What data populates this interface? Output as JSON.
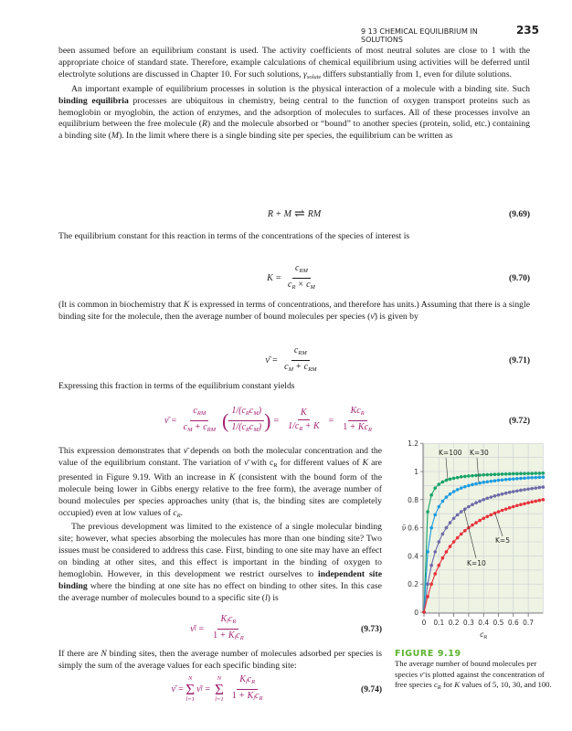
{
  "header": {
    "section": "9 13  CHEMICAL EQUILIBRIUM IN SOLUTIONS",
    "page": "235"
  },
  "para1": [
    "been assumed before an equilibrium constant is used. The activity coefficients of most neutral solutes are close to 1 with the appropriate choice of standard state. Therefore, example calculations of chemical equilibrium using activities will be deferred until electrolyte solutions are discussed in Chapter 10. For such solutions, ",
    "γ",
    "solute",
    " differs substantially from 1, even for dilute solutions."
  ],
  "para2": [
    "An important example of equilibrium processes in solution is the physical interaction of a molecule with a binding site. Such ",
    "binding equilibria",
    " processes are ubiquitous in chemistry, being central to the function of oxygen transport proteins such as hemoglobin or myoglobin, the action of enzymes, and the adsorption of molecules to surfaces. All of these processes involve an equilibrium between the free molecule (",
    "R",
    ") and the molecule absorbed or “bound” to another species (protein, solid, etc.) containing a binding site (",
    "M",
    "). In the limit where there is a single binding site per species, the equilibrium can be written as"
  ],
  "eq69": {
    "lhs": "R + M",
    "arrow": "⇌",
    "rhs": "RM",
    "num": "(9.69)"
  },
  "para3": "The equilibrium constant for this reaction in terms of the concentrations of the species of interest is",
  "eq70": {
    "lhs": "K =",
    "c": "c",
    "sub_rm": "RM",
    "sub_r": "R",
    "sub_m": "M",
    "times": "×",
    "num": "(9.70)"
  },
  "para4": [
    "(It is common in biochemistry that ",
    "K",
    " is expressed in terms of concentrations, and therefore has units.) Assuming that there is a single binding site for the molecule, then the average number of bound molecules per species (",
    "ν̄",
    ") is given by"
  ],
  "eq71": {
    "lhs": "ν̄ =",
    "plus": "+",
    "num": "(9.71)"
  },
  "para5": "Expressing this fraction in terms of the equilibrium constant yields",
  "eq72": {
    "lhs": "ν̄ =",
    "one_over": "1/(",
    "close": ")",
    "eq": "=",
    "K": "K",
    "one_slash": "1/",
    "one": "1",
    "num": "(9.72)"
  },
  "para6": [
    "This expression demonstrates that ",
    "ν̄",
    " depends on both the molecular concentration and the value of the equilibrium constant. The variation of ",
    "ν̄",
    " with c",
    "R",
    " for different values of ",
    "K",
    " are presented in Figure 9.19. With an increase in ",
    "K",
    " (consistent with the bound form of the molecule being lower in Gibbs energy relative to the free form), the average number of bound molecules per species approaches unity (that is, the binding sites are completely occupied) even at low values of ",
    "c",
    "R",
    "."
  ],
  "para7": [
    "The previous development was limited to the existence of a single molecular binding site; however, what species absorbing the molecules has more than one binding site? Two issues must be considered to address this case. First, binding to one site may have an effect on binding at other sites, and this effect is important in the binding of oxygen to hemoglobin. However, in this development we restrict ourselves to ",
    "independent site binding",
    " where the binding at one site has no effect on binding to other sites. In this case the average number of molecules bound to a specific site (",
    "l",
    ") is"
  ],
  "eq73": {
    "lhs": "ν̄",
    "sub_l": "l",
    "eqs": "=",
    "K": "K",
    "num": "(9.73)"
  },
  "para8": [
    "If there are ",
    "N",
    " binding sites, then the average number of molecules adsorbed per species is simply the sum of the average values for each specific binding site:"
  ],
  "eq74": {
    "sigma": "Σ",
    "N": "N",
    "l1": "l=1",
    "num": "(9.74)"
  },
  "figure": {
    "title": "FIGURE 9.19",
    "caption": [
      "The average number of bound molecules per species ",
      "ν̄",
      " is plotted against the concentration of free species ",
      "c",
      "R",
      " for ",
      "K",
      " values of 5, 10, 30, and 100."
    ]
  },
  "chart_data": {
    "type": "line",
    "xlabel": "cR",
    "ylabel": "ν̄",
    "xlim": [
      0,
      0.8
    ],
    "ylim": [
      0,
      1.2
    ],
    "xticks": [
      "0",
      "0.1",
      "0.2",
      "0.3",
      "0.4",
      "0.5",
      "0.6",
      "0.7"
    ],
    "yticks": [
      "0",
      "0.2",
      "0.4",
      "0.6",
      "0.8",
      "1",
      "1.2"
    ],
    "grid": true,
    "markers": true,
    "background": "#eef3e3",
    "x": [
      0,
      0.025,
      0.05,
      0.075,
      0.1,
      0.125,
      0.15,
      0.175,
      0.2,
      0.225,
      0.25,
      0.275,
      0.3,
      0.325,
      0.35,
      0.375,
      0.4,
      0.425,
      0.45,
      0.475,
      0.5,
      0.525,
      0.55,
      0.575,
      0.6,
      0.625,
      0.65,
      0.675,
      0.7,
      0.725,
      0.75,
      0.775,
      0.8
    ],
    "series": [
      {
        "name": "K=100",
        "color": "#16a36a",
        "values": [
          0,
          0.714,
          0.833,
          0.882,
          0.909,
          0.926,
          0.938,
          0.946,
          0.952,
          0.957,
          0.962,
          0.965,
          0.968,
          0.97,
          0.972,
          0.974,
          0.976,
          0.977,
          0.978,
          0.979,
          0.98,
          0.981,
          0.982,
          0.983,
          0.984,
          0.984,
          0.985,
          0.985,
          0.986,
          0.986,
          0.987,
          0.987,
          0.988
        ]
      },
      {
        "name": "K=30",
        "color": "#1b9be0",
        "values": [
          0,
          0.429,
          0.6,
          0.692,
          0.75,
          0.789,
          0.818,
          0.84,
          0.857,
          0.871,
          0.882,
          0.892,
          0.9,
          0.907,
          0.913,
          0.918,
          0.923,
          0.927,
          0.931,
          0.934,
          0.938,
          0.94,
          0.943,
          0.945,
          0.947,
          0.949,
          0.951,
          0.953,
          0.955,
          0.956,
          0.957,
          0.959,
          0.96
        ]
      },
      {
        "name": "K=10",
        "color": "#6d6aa8",
        "values": [
          0,
          0.2,
          0.333,
          0.429,
          0.5,
          0.556,
          0.6,
          0.636,
          0.667,
          0.692,
          0.714,
          0.733,
          0.75,
          0.765,
          0.778,
          0.789,
          0.8,
          0.81,
          0.818,
          0.826,
          0.833,
          0.84,
          0.846,
          0.852,
          0.857,
          0.862,
          0.867,
          0.871,
          0.875,
          0.879,
          0.882,
          0.886,
          0.889
        ]
      },
      {
        "name": "K=5",
        "color": "#e8303a",
        "values": [
          0,
          0.111,
          0.2,
          0.273,
          0.333,
          0.385,
          0.429,
          0.467,
          0.5,
          0.529,
          0.556,
          0.579,
          0.6,
          0.619,
          0.636,
          0.652,
          0.667,
          0.68,
          0.692,
          0.704,
          0.714,
          0.724,
          0.733,
          0.742,
          0.75,
          0.758,
          0.765,
          0.771,
          0.778,
          0.784,
          0.789,
          0.795,
          0.8
        ]
      }
    ]
  }
}
